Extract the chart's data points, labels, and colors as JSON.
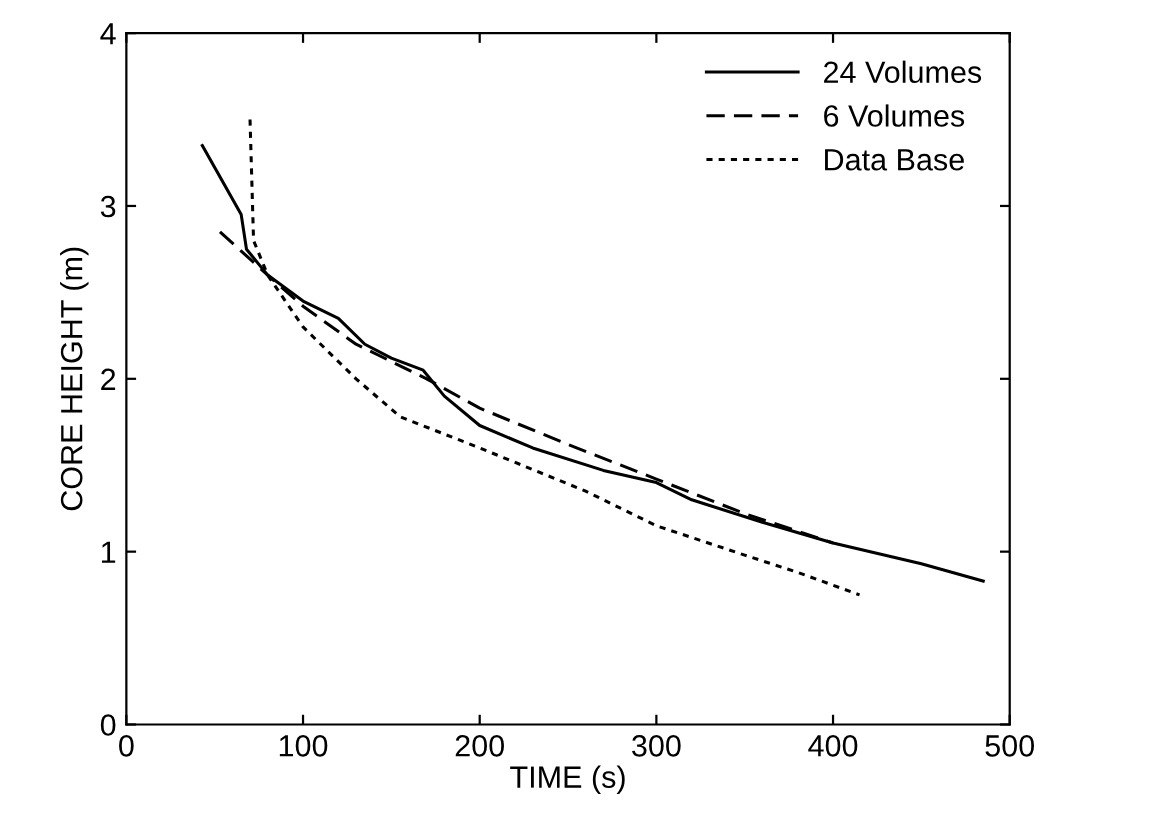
{
  "chart_data": {
    "type": "line",
    "xlabel": "TIME (s)",
    "ylabel": "CORE HEIGHT (m)",
    "xlim": [
      0,
      500
    ],
    "ylim": [
      0,
      4
    ],
    "xticks": [
      0,
      100,
      200,
      300,
      400,
      500
    ],
    "yticks": [
      0,
      1,
      2,
      3,
      4
    ],
    "grid": false,
    "legend": "top right",
    "series": [
      {
        "name": "24 Volumes",
        "color": "#000000",
        "line_style": "solid",
        "x": [
          43,
          65,
          68,
          80,
          100,
          120,
          135,
          150,
          168,
          180,
          200,
          230,
          270,
          300,
          320,
          360,
          400,
          450,
          485
        ],
        "values": [
          3.35,
          2.95,
          2.75,
          2.6,
          2.45,
          2.35,
          2.2,
          2.12,
          2.05,
          1.9,
          1.73,
          1.6,
          1.47,
          1.4,
          1.3,
          1.17,
          1.05,
          0.93,
          0.83
        ]
      },
      {
        "name": "6 Volumes",
        "color": "#000000",
        "line_style": "dashed",
        "x": [
          53,
          80,
          100,
          130,
          170,
          200,
          250,
          300,
          350,
          400
        ],
        "values": [
          2.85,
          2.6,
          2.42,
          2.2,
          2.0,
          1.83,
          1.62,
          1.42,
          1.22,
          1.05
        ]
      },
      {
        "name": "Data Base",
        "color": "#000000",
        "line_style": "dotted",
        "x": [
          70,
          72,
          80,
          100,
          130,
          155,
          200,
          260,
          300,
          350,
          380,
          415
        ],
        "values": [
          3.5,
          2.8,
          2.6,
          2.3,
          2.0,
          1.78,
          1.6,
          1.35,
          1.15,
          0.98,
          0.88,
          0.75
        ]
      }
    ]
  }
}
